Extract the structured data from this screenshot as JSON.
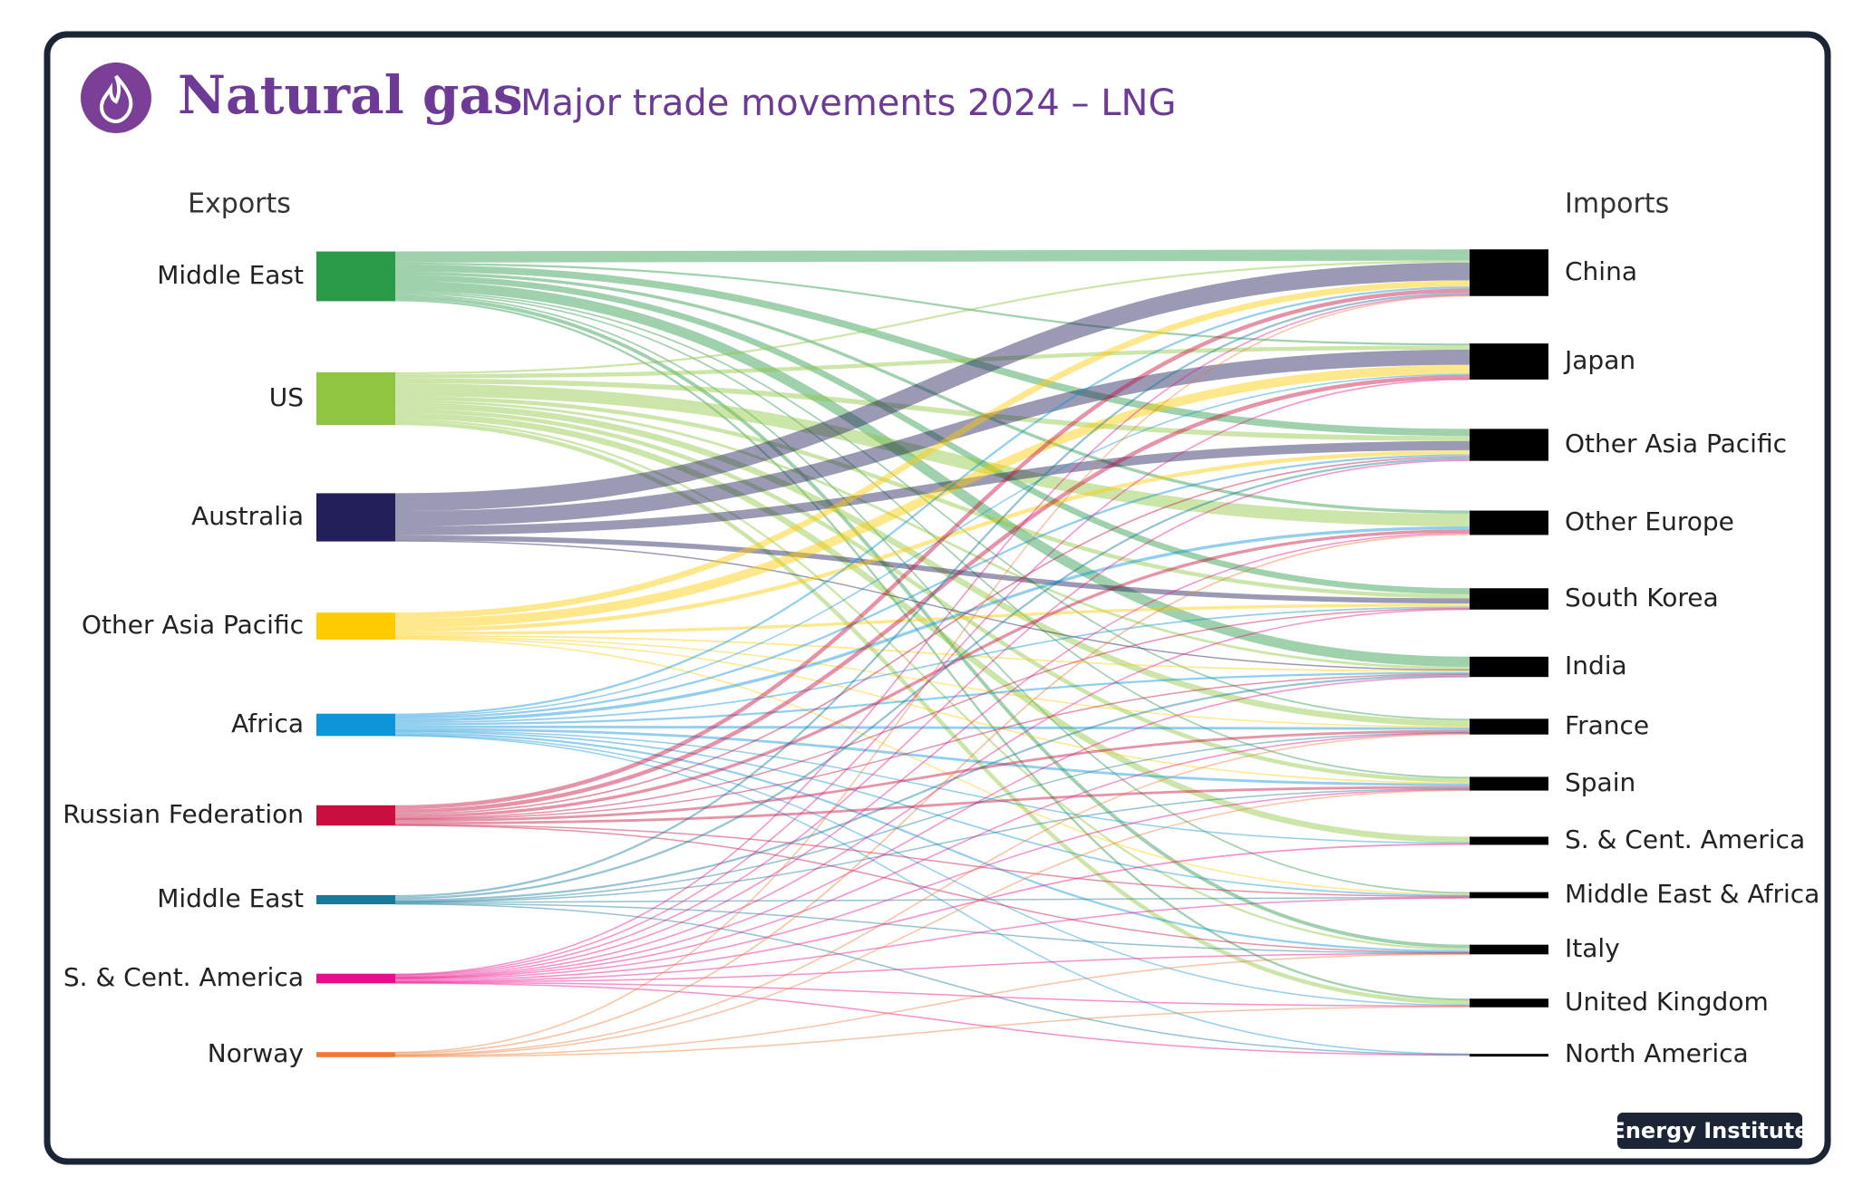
{
  "chart_data": {
    "type": "sankey",
    "title": "Natural gas",
    "subtitle": "Major trade movements 2024 – LNG",
    "source_label": "Exports",
    "target_label": "Imports",
    "footer": "Energy Institute",
    "target_color": "#000000",
    "sources": [
      {
        "name": "Middle East",
        "color": "#2a9a48"
      },
      {
        "name": "US",
        "color": "#8fc641"
      },
      {
        "name": "Australia",
        "color": "#221f5a"
      },
      {
        "name": "Other Asia Pacific",
        "color": "#ffcc00"
      },
      {
        "name": "Africa",
        "color": "#0d95d9"
      },
      {
        "name": "Russian Federation",
        "color": "#c8103f"
      },
      {
        "name": "Middle East",
        "color": "#137a9c"
      },
      {
        "name": "S. & Cent. America",
        "color": "#ec0b8c"
      },
      {
        "name": "Norway",
        "color": "#f07a30"
      }
    ],
    "targets": [
      {
        "name": "China"
      },
      {
        "name": "Japan"
      },
      {
        "name": "Other Asia Pacific"
      },
      {
        "name": "Other Europe"
      },
      {
        "name": "South Korea"
      },
      {
        "name": "India"
      },
      {
        "name": "France"
      },
      {
        "name": "Spain"
      },
      {
        "name": "S. & Cent. America"
      },
      {
        "name": "Middle East & Africa"
      },
      {
        "name": "Italy"
      },
      {
        "name": "United Kingdom"
      },
      {
        "name": "North America"
      }
    ],
    "links": [
      {
        "source": 0,
        "target": 0,
        "value": 22
      },
      {
        "source": 0,
        "target": 1,
        "value": 4
      },
      {
        "source": 0,
        "target": 2,
        "value": 14
      },
      {
        "source": 0,
        "target": 3,
        "value": 6
      },
      {
        "source": 0,
        "target": 4,
        "value": 12
      },
      {
        "source": 0,
        "target": 5,
        "value": 20
      },
      {
        "source": 0,
        "target": 6,
        "value": 3
      },
      {
        "source": 0,
        "target": 7,
        "value": 3
      },
      {
        "source": 0,
        "target": 9,
        "value": 3
      },
      {
        "source": 0,
        "target": 10,
        "value": 7
      },
      {
        "source": 0,
        "target": 11,
        "value": 4
      },
      {
        "source": 1,
        "target": 0,
        "value": 4
      },
      {
        "source": 1,
        "target": 1,
        "value": 8
      },
      {
        "source": 1,
        "target": 2,
        "value": 10
      },
      {
        "source": 1,
        "target": 3,
        "value": 25
      },
      {
        "source": 1,
        "target": 4,
        "value": 8
      },
      {
        "source": 1,
        "target": 5,
        "value": 5
      },
      {
        "source": 1,
        "target": 6,
        "value": 12
      },
      {
        "source": 1,
        "target": 7,
        "value": 8
      },
      {
        "source": 1,
        "target": 8,
        "value": 12
      },
      {
        "source": 1,
        "target": 10,
        "value": 4
      },
      {
        "source": 1,
        "target": 11,
        "value": 8
      },
      {
        "source": 2,
        "target": 0,
        "value": 35
      },
      {
        "source": 2,
        "target": 1,
        "value": 30
      },
      {
        "source": 2,
        "target": 2,
        "value": 18
      },
      {
        "source": 2,
        "target": 4,
        "value": 10
      },
      {
        "source": 2,
        "target": 5,
        "value": 2
      },
      {
        "source": 3,
        "target": 0,
        "value": 12
      },
      {
        "source": 3,
        "target": 1,
        "value": 18
      },
      {
        "source": 3,
        "target": 2,
        "value": 8
      },
      {
        "source": 3,
        "target": 4,
        "value": 6
      },
      {
        "source": 3,
        "target": 5,
        "value": 3
      },
      {
        "source": 3,
        "target": 6,
        "value": 2
      },
      {
        "source": 3,
        "target": 7,
        "value": 2
      },
      {
        "source": 3,
        "target": 9,
        "value": 2
      },
      {
        "source": 4,
        "target": 0,
        "value": 4
      },
      {
        "source": 4,
        "target": 1,
        "value": 2
      },
      {
        "source": 4,
        "target": 2,
        "value": 4
      },
      {
        "source": 4,
        "target": 3,
        "value": 6
      },
      {
        "source": 4,
        "target": 4,
        "value": 3
      },
      {
        "source": 4,
        "target": 5,
        "value": 4
      },
      {
        "source": 4,
        "target": 6,
        "value": 5
      },
      {
        "source": 4,
        "target": 7,
        "value": 5
      },
      {
        "source": 4,
        "target": 8,
        "value": 1
      },
      {
        "source": 4,
        "target": 9,
        "value": 3
      },
      {
        "source": 4,
        "target": 10,
        "value": 4
      },
      {
        "source": 4,
        "target": 11,
        "value": 2
      },
      {
        "source": 4,
        "target": 12,
        "value": 1
      },
      {
        "source": 5,
        "target": 0,
        "value": 8
      },
      {
        "source": 5,
        "target": 1,
        "value": 8
      },
      {
        "source": 5,
        "target": 2,
        "value": 3
      },
      {
        "source": 5,
        "target": 3,
        "value": 6
      },
      {
        "source": 5,
        "target": 4,
        "value": 2
      },
      {
        "source": 5,
        "target": 5,
        "value": 1
      },
      {
        "source": 5,
        "target": 6,
        "value": 5
      },
      {
        "source": 5,
        "target": 7,
        "value": 5
      },
      {
        "source": 5,
        "target": 9,
        "value": 1
      },
      {
        "source": 5,
        "target": 10,
        "value": 1
      },
      {
        "source": 6,
        "target": 0,
        "value": 4
      },
      {
        "source": 6,
        "target": 2,
        "value": 4
      },
      {
        "source": 6,
        "target": 5,
        "value": 4
      },
      {
        "source": 6,
        "target": 6,
        "value": 1
      },
      {
        "source": 6,
        "target": 7,
        "value": 1
      },
      {
        "source": 6,
        "target": 9,
        "value": 2
      },
      {
        "source": 6,
        "target": 10,
        "value": 1
      },
      {
        "source": 6,
        "target": 12,
        "value": 1
      },
      {
        "source": 7,
        "target": 0,
        "value": 2
      },
      {
        "source": 7,
        "target": 1,
        "value": 1
      },
      {
        "source": 7,
        "target": 2,
        "value": 2
      },
      {
        "source": 7,
        "target": 3,
        "value": 2
      },
      {
        "source": 7,
        "target": 4,
        "value": 1
      },
      {
        "source": 7,
        "target": 5,
        "value": 1
      },
      {
        "source": 7,
        "target": 6,
        "value": 1
      },
      {
        "source": 7,
        "target": 7,
        "value": 2
      },
      {
        "source": 7,
        "target": 8,
        "value": 3
      },
      {
        "source": 7,
        "target": 9,
        "value": 1
      },
      {
        "source": 7,
        "target": 10,
        "value": 1
      },
      {
        "source": 7,
        "target": 11,
        "value": 1
      },
      {
        "source": 7,
        "target": 12,
        "value": 1
      },
      {
        "source": 8,
        "target": 0,
        "value": 1
      },
      {
        "source": 8,
        "target": 3,
        "value": 3
      },
      {
        "source": 8,
        "target": 6,
        "value": 2
      },
      {
        "source": 8,
        "target": 7,
        "value": 1
      },
      {
        "source": 8,
        "target": 10,
        "value": 1
      },
      {
        "source": 8,
        "target": 11,
        "value": 2
      }
    ]
  }
}
